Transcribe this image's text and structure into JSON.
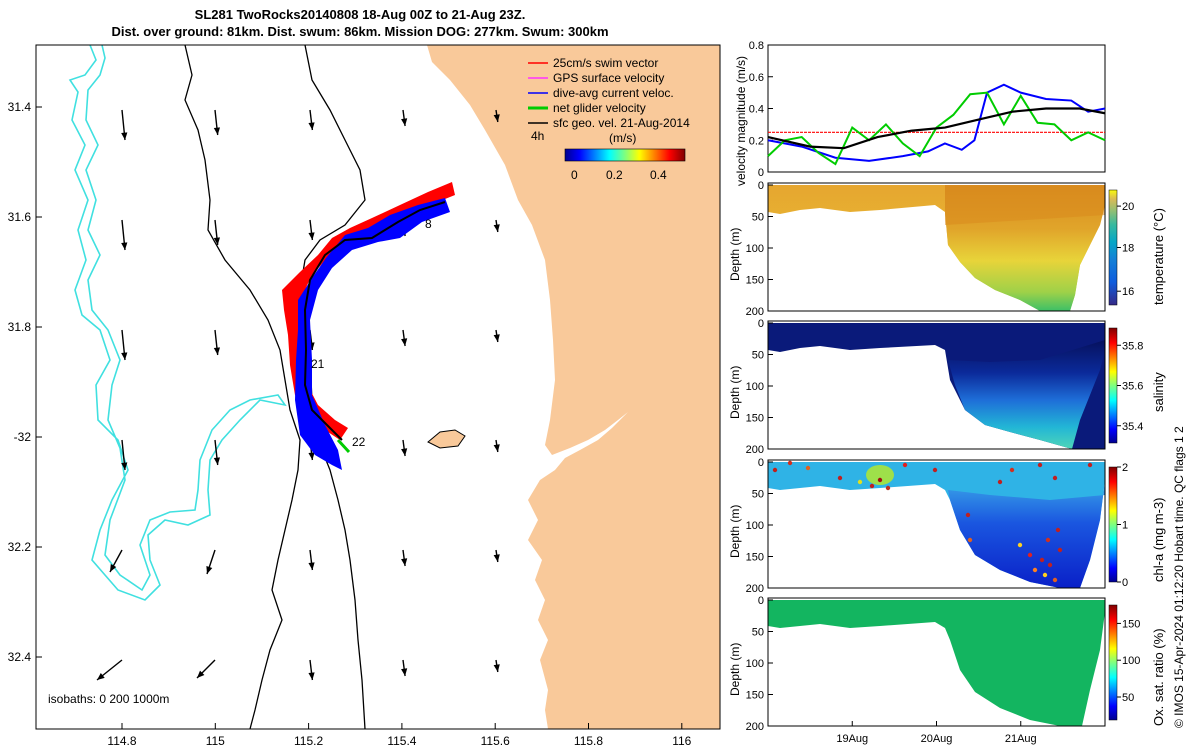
{
  "title_line1": "SL281 TwoRocks20140808 18-Aug 00Z to 21-Aug 23Z.",
  "title_line2": "Dist. over ground: 81km. Dist. swum: 86km. Mission DOG: 277km. Swum: 300km",
  "map": {
    "lon_ticks": [
      "114.8",
      "115",
      "115.2",
      "115.4",
      "115.6",
      "115.8",
      "116"
    ],
    "lat_ticks": [
      "31.4",
      "31.6",
      "31.8",
      "-32",
      "32.2",
      "32.4"
    ],
    "legend": [
      "25cm/s swim vector",
      "GPS surface velocity",
      "dive-avg current veloc.",
      "net glider velocity",
      "sfc geo. vel. 21-Aug-2014"
    ],
    "time_label": "4h",
    "colorbar_unit": "(m/s)",
    "colorbar_ticks": [
      "0",
      "0.2",
      "0.4"
    ],
    "day_labels": [
      "21",
      "22"
    ],
    "day_label_partial": "8",
    "isobaths": "isobaths: 0   200  1000m",
    "colors": {
      "land": "#f9c99a",
      "swim": "#ff0000",
      "gps": "#ff33ff",
      "dive": "#0000ff",
      "net": "#00cc00",
      "geo": "#000000",
      "isobath0": "#40e0e0"
    }
  },
  "chart_data": [
    {
      "type": "line",
      "ylabel": "velocity magnitude (m/s)",
      "ylim": [
        0,
        0.8
      ],
      "yticks": [
        "0",
        "0.2",
        "0.4",
        "0.6",
        "0.8"
      ],
      "x_days": [
        18,
        22
      ],
      "series": [
        {
          "name": "25cm/s swim vector",
          "color": "#ff0000",
          "x": [
            18.0,
            22.0
          ],
          "y": [
            0.25,
            0.25
          ]
        },
        {
          "name": "dive-avg current veloc.",
          "color": "#0000ff",
          "x": [
            18.0,
            18.4,
            18.8,
            19.2,
            19.6,
            19.9,
            20.1,
            20.3,
            20.45,
            20.6,
            20.8,
            21.0,
            21.3,
            21.6,
            21.8,
            22.0
          ],
          "y": [
            0.2,
            0.16,
            0.09,
            0.07,
            0.1,
            0.13,
            0.18,
            0.14,
            0.2,
            0.5,
            0.55,
            0.5,
            0.46,
            0.45,
            0.38,
            0.4
          ]
        },
        {
          "name": "net glider velocity",
          "color": "#00cc00",
          "x": [
            18.0,
            18.2,
            18.4,
            18.6,
            18.8,
            19.0,
            19.2,
            19.4,
            19.6,
            19.8,
            20.0,
            20.2,
            20.4,
            20.6,
            20.8,
            21.0,
            21.2,
            21.4,
            21.6,
            21.8,
            22.0
          ],
          "y": [
            0.1,
            0.2,
            0.22,
            0.12,
            0.05,
            0.28,
            0.2,
            0.3,
            0.18,
            0.1,
            0.28,
            0.36,
            0.49,
            0.5,
            0.3,
            0.48,
            0.31,
            0.3,
            0.2,
            0.25,
            0.2
          ]
        },
        {
          "name": "sfc geo. vel. 21-Aug-2014",
          "color": "#000000",
          "x": [
            18.0,
            18.5,
            18.9,
            19.3,
            19.7,
            20.1,
            20.5,
            20.9,
            21.3,
            21.7,
            22.0
          ],
          "y": [
            0.22,
            0.16,
            0.15,
            0.22,
            0.26,
            0.28,
            0.33,
            0.38,
            0.4,
            0.4,
            0.37
          ]
        }
      ]
    },
    {
      "type": "heatmap",
      "ylabel": "Depth (m)",
      "clabel": "temperature (°C)",
      "cticks": [
        "16",
        "18",
        "20"
      ],
      "yticks": [
        "0",
        "50",
        "100",
        "150",
        "200"
      ],
      "ylim": [
        200,
        0
      ]
    },
    {
      "type": "heatmap",
      "ylabel": "Depth (m)",
      "clabel": "salinity",
      "cticks": [
        "35.4",
        "35.6",
        "35.8"
      ],
      "yticks": [
        "0",
        "50",
        "100",
        "150",
        "200"
      ],
      "ylim": [
        200,
        0
      ]
    },
    {
      "type": "heatmap",
      "ylabel": "Depth (m)",
      "clabel": "chl-a (mg m-3)",
      "cticks": [
        "0",
        "1",
        "2"
      ],
      "yticks": [
        "0",
        "50",
        "100",
        "150",
        "200"
      ],
      "ylim": [
        200,
        0
      ]
    },
    {
      "type": "heatmap",
      "ylabel": "Depth (m)",
      "clabel": "Ox. sat. ratio (%)",
      "cticks": [
        "50",
        "100",
        "150"
      ],
      "yticks": [
        "0",
        "50",
        "100",
        "150",
        "200"
      ],
      "ylim": [
        200,
        0
      ],
      "xticks": [
        "19Aug",
        "20Aug",
        "21Aug"
      ]
    }
  ],
  "footer_stamp": "© IMOS 15-Apr-2024 01:12:20 Hobart time. QC flags 1  2"
}
